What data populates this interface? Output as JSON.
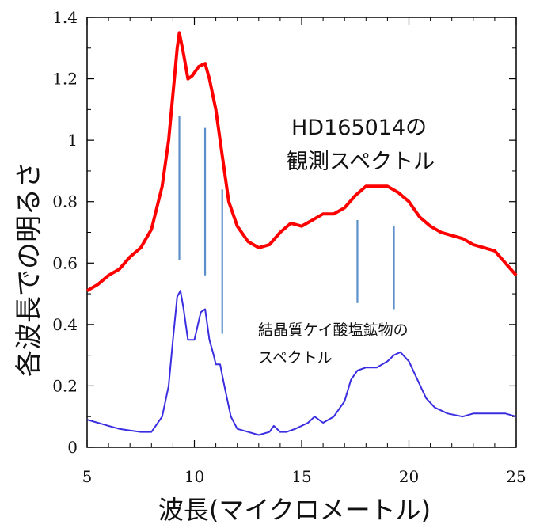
{
  "chart_data": {
    "type": "line",
    "xlabel": "波長(マイクロメートル)",
    "ylabel": "各波長での明るさ",
    "xlim": [
      5,
      25
    ],
    "ylim": [
      0,
      1.4
    ],
    "xticks": [
      "5",
      "10",
      "15",
      "20",
      "25"
    ],
    "yticks": [
      "0",
      "0.2",
      "0.4",
      "0.6",
      "0.8",
      "1",
      "1.2",
      "1.4"
    ],
    "grid": false,
    "annotations": [
      {
        "line1": "HD165014の",
        "line2": "観測スペクトル"
      },
      {
        "line1": "結晶質ケイ酸塩鉱物の",
        "line2": "スペクトル"
      }
    ],
    "series": [
      {
        "color": "#ff0000",
        "x": [
          5.0,
          5.5,
          6.0,
          6.5,
          7.0,
          7.5,
          8.0,
          8.5,
          8.8,
          9.0,
          9.2,
          9.3,
          9.5,
          9.7,
          9.9,
          10.2,
          10.5,
          10.7,
          11.0,
          11.3,
          11.6,
          12.0,
          12.5,
          13.0,
          13.5,
          14.0,
          14.5,
          15.0,
          15.5,
          16.0,
          16.5,
          17.0,
          17.5,
          18.0,
          18.5,
          19.0,
          19.5,
          20.0,
          20.5,
          21.0,
          21.5,
          22.0,
          22.5,
          23.0,
          23.5,
          24.0,
          24.5,
          25.0
        ],
        "values": [
          0.51,
          0.53,
          0.56,
          0.58,
          0.62,
          0.65,
          0.71,
          0.85,
          1.0,
          1.15,
          1.3,
          1.35,
          1.28,
          1.2,
          1.21,
          1.24,
          1.25,
          1.2,
          1.1,
          0.95,
          0.8,
          0.72,
          0.67,
          0.65,
          0.66,
          0.7,
          0.73,
          0.72,
          0.74,
          0.76,
          0.76,
          0.78,
          0.82,
          0.85,
          0.85,
          0.85,
          0.83,
          0.8,
          0.75,
          0.72,
          0.7,
          0.69,
          0.68,
          0.66,
          0.65,
          0.64,
          0.6,
          0.56
        ]
      },
      {
        "color": "#3a2ee0",
        "x": [
          5.0,
          5.5,
          6.0,
          6.5,
          7.0,
          7.5,
          8.0,
          8.5,
          8.8,
          9.0,
          9.2,
          9.35,
          9.5,
          9.7,
          10.0,
          10.3,
          10.5,
          10.7,
          10.9,
          11.0,
          11.2,
          11.4,
          11.7,
          12.0,
          12.5,
          13.0,
          13.5,
          13.7,
          14.0,
          14.3,
          14.7,
          15.0,
          15.3,
          15.6,
          16.0,
          16.5,
          17.0,
          17.3,
          17.6,
          18.0,
          18.5,
          19.0,
          19.3,
          19.6,
          20.0,
          20.4,
          20.8,
          21.2,
          21.8,
          22.5,
          23.0,
          23.5,
          24.0,
          24.5,
          25.0
        ],
        "values": [
          0.09,
          0.08,
          0.07,
          0.06,
          0.055,
          0.05,
          0.05,
          0.1,
          0.2,
          0.35,
          0.49,
          0.51,
          0.45,
          0.35,
          0.35,
          0.44,
          0.45,
          0.35,
          0.3,
          0.27,
          0.27,
          0.2,
          0.1,
          0.06,
          0.05,
          0.04,
          0.05,
          0.07,
          0.05,
          0.05,
          0.06,
          0.07,
          0.08,
          0.1,
          0.08,
          0.1,
          0.15,
          0.22,
          0.25,
          0.26,
          0.26,
          0.28,
          0.3,
          0.31,
          0.28,
          0.22,
          0.16,
          0.13,
          0.11,
          0.1,
          0.11,
          0.11,
          0.11,
          0.11,
          0.1
        ]
      }
    ],
    "markers": {
      "color": "#5b8fc9",
      "lines": [
        {
          "x": 9.3,
          "y0": 0.61,
          "y1": 1.08
        },
        {
          "x": 10.5,
          "y0": 0.56,
          "y1": 1.04
        },
        {
          "x": 11.3,
          "y0": 0.37,
          "y1": 0.84
        },
        {
          "x": 17.6,
          "y0": 0.47,
          "y1": 0.74
        },
        {
          "x": 19.3,
          "y0": 0.45,
          "y1": 0.72
        }
      ]
    }
  }
}
